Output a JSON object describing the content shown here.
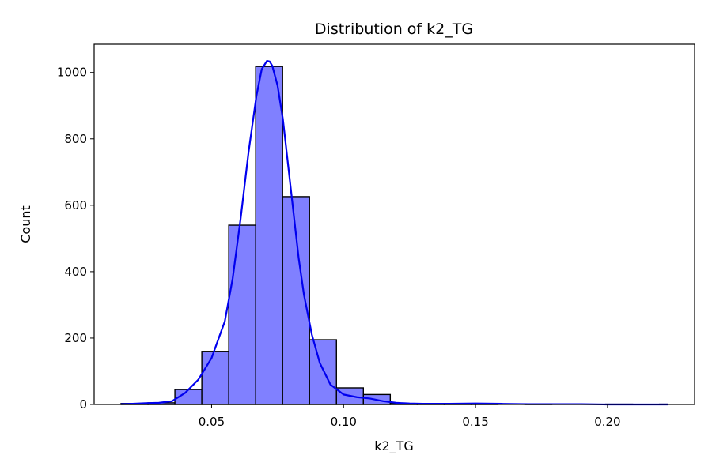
{
  "chart_data": {
    "type": "bar",
    "title": "Distribution of k2_TG",
    "xlabel": "k2_TG",
    "ylabel": "Count",
    "xlim": [
      0.0055,
      0.233
    ],
    "ylim": [
      0,
      1085
    ],
    "grid": false,
    "bins": {
      "edges": [
        0.0157,
        0.0259,
        0.0361,
        0.0463,
        0.0565,
        0.0667,
        0.0769,
        0.0871,
        0.0973,
        0.1075,
        0.1177,
        0.1279,
        0.1381,
        0.1483,
        0.1585,
        0.1687,
        0.1789,
        0.1891,
        0.1993,
        0.2095,
        0.2197,
        0.2229
      ],
      "counts": [
        3,
        5,
        45,
        160,
        540,
        1018,
        626,
        195,
        50,
        30,
        3,
        2,
        3,
        1,
        0,
        1,
        0,
        0,
        1,
        0,
        1
      ]
    },
    "kde": {
      "name": "kde",
      "x": [
        0.0157,
        0.02,
        0.025,
        0.03,
        0.035,
        0.04,
        0.045,
        0.05,
        0.055,
        0.058,
        0.061,
        0.064,
        0.067,
        0.069,
        0.071,
        0.072,
        0.073,
        0.075,
        0.077,
        0.079,
        0.081,
        0.083,
        0.085,
        0.088,
        0.091,
        0.095,
        0.1,
        0.105,
        0.11,
        0.115,
        0.12,
        0.125,
        0.13,
        0.14,
        0.15,
        0.16,
        0.17,
        0.18,
        0.19,
        0.2,
        0.21,
        0.2229
      ],
      "y": [
        1,
        2,
        4,
        5,
        10,
        35,
        75,
        140,
        250,
        380,
        560,
        760,
        930,
        1010,
        1035,
        1033,
        1020,
        960,
        860,
        720,
        580,
        440,
        330,
        210,
        125,
        60,
        30,
        22,
        18,
        10,
        5,
        3,
        2,
        2,
        3,
        2,
        1,
        1,
        1,
        0,
        0,
        0
      ]
    },
    "colors": {
      "bar_fill": "#8080ff",
      "bar_edge": "#000000",
      "kde_line": "#0000ee"
    },
    "xticks": [
      0.05,
      0.1,
      0.15,
      0.2
    ],
    "xtick_labels": [
      "0.05",
      "0.10",
      "0.15",
      "0.20"
    ],
    "yticks": [
      0,
      200,
      400,
      600,
      800,
      1000
    ],
    "ytick_labels": [
      "0",
      "200",
      "400",
      "600",
      "800",
      "1000"
    ]
  }
}
